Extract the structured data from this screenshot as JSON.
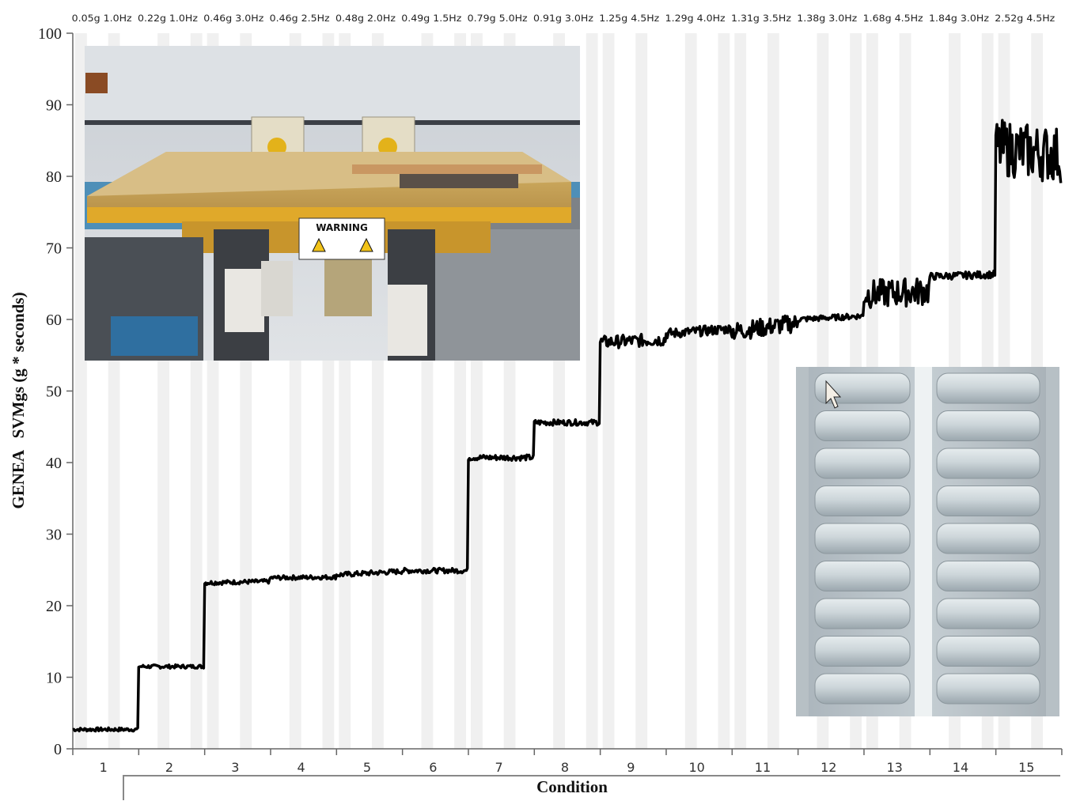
{
  "chart_data": {
    "type": "line",
    "title": "",
    "xlabel": "Condition",
    "ylabel": "GENEA   SVMgs (g * seconds)",
    "ylim": [
      0,
      100
    ],
    "yticks": [
      "0",
      "10",
      "20",
      "30",
      "40",
      "50",
      "60",
      "70",
      "80",
      "90",
      "100"
    ],
    "categories": [
      "1",
      "2",
      "3",
      "4",
      "5",
      "6",
      "7",
      "8",
      "9",
      "10",
      "11",
      "12",
      "13",
      "14",
      "15"
    ],
    "condition_labels": [
      "0.05g 1.0Hz",
      "0.22g 1.0Hz",
      "0.46g 3.0Hz",
      "0.46g 2.5Hz",
      "0.48g 2.0Hz",
      "0.49g 1.5Hz",
      "0.79g 5.0Hz",
      "0.91g 3.0Hz",
      "1.25g 4.5Hz",
      "1.29g 4.0Hz",
      "1.31g 3.5Hz",
      "1.38g 3.0Hz",
      "1.68g 4.5Hz",
      "1.84g 3.0Hz",
      "2.52g 4.5Hz"
    ],
    "series": [
      {
        "name": "",
        "level_start": [
          2.7,
          11.5,
          23.2,
          23.9,
          24.3,
          24.9,
          40.7,
          45.6,
          56.8,
          58.0,
          58.3,
          60.0,
          63.5,
          66.0,
          84.0
        ],
        "level_end": [
          2.7,
          11.5,
          23.4,
          24.0,
          24.8,
          24.9,
          40.7,
          45.6,
          57.2,
          58.7,
          59.5,
          60.5,
          64.0,
          66.3,
          83.0
        ],
        "noise": [
          0.25,
          0.25,
          0.3,
          0.3,
          0.35,
          0.35,
          0.4,
          0.4,
          0.9,
          0.7,
          1.3,
          0.4,
          2.0,
          0.5,
          4.0
        ]
      }
    ],
    "grid": false,
    "legend": "none",
    "colors": {
      "line": "#000000",
      "band": "#f0f0f0"
    }
  },
  "photos": {
    "top": {
      "caption": "WARNING"
    },
    "bottom": {}
  }
}
